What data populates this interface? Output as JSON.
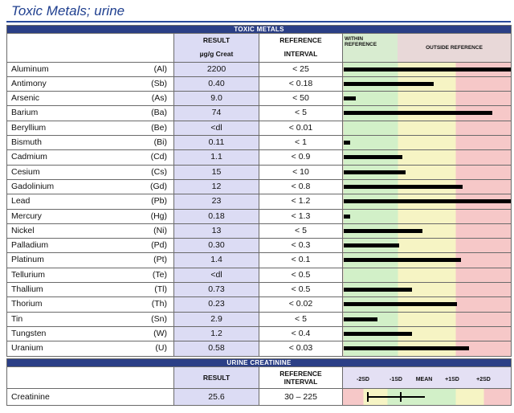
{
  "page_title": "Toxic Metals; urine",
  "toxic_metals": {
    "banner": "TOXIC METALS",
    "col_result_line1": "RESULT",
    "col_result_line2": "µg/g Creat",
    "col_ref_line1": "REFERENCE",
    "col_ref_line2": "INTERVAL",
    "within_line1": "WITHIN",
    "within_line2": "REFERENCE",
    "outside_label": "OUTSIDE REFERENCE",
    "rows": [
      {
        "name": "Aluminum",
        "symbol": "(Al)",
        "result": "2200",
        "ref": "< 25",
        "bar_fraction": 1.0
      },
      {
        "name": "Antimony",
        "symbol": "(Sb)",
        "result": "0.40",
        "ref": "< 0.18",
        "bar_fraction": 0.54
      },
      {
        "name": "Arsenic",
        "symbol": "(As)",
        "result": "9.0",
        "ref": "< 50",
        "bar_fraction": 0.07
      },
      {
        "name": "Barium",
        "symbol": "(Ba)",
        "result": "74",
        "ref": "< 5",
        "bar_fraction": 0.89
      },
      {
        "name": "Beryllium",
        "symbol": "(Be)",
        "result": "<dl",
        "ref": "< 0.01",
        "bar_fraction": 0.0
      },
      {
        "name": "Bismuth",
        "symbol": "(Bi)",
        "result": "0.11",
        "ref": "< 1",
        "bar_fraction": 0.04
      },
      {
        "name": "Cadmium",
        "symbol": "(Cd)",
        "result": "1.1",
        "ref": "< 0.9",
        "bar_fraction": 0.35
      },
      {
        "name": "Cesium",
        "symbol": "(Cs)",
        "result": "15",
        "ref": "< 10",
        "bar_fraction": 0.37
      },
      {
        "name": "Gadolinium",
        "symbol": "(Gd)",
        "result": "12",
        "ref": "< 0.8",
        "bar_fraction": 0.71
      },
      {
        "name": "Lead",
        "symbol": "(Pb)",
        "result": "23",
        "ref": "< 1.2",
        "bar_fraction": 1.0
      },
      {
        "name": "Mercury",
        "symbol": "(Hg)",
        "result": "0.18",
        "ref": "< 1.3",
        "bar_fraction": 0.04
      },
      {
        "name": "Nickel",
        "symbol": "(Ni)",
        "result": "13",
        "ref": "< 5",
        "bar_fraction": 0.47
      },
      {
        "name": "Palladium",
        "symbol": "(Pd)",
        "result": "0.30",
        "ref": "< 0.3",
        "bar_fraction": 0.33
      },
      {
        "name": "Platinum",
        "symbol": "(Pt)",
        "result": "1.4",
        "ref": "< 0.1",
        "bar_fraction": 0.7
      },
      {
        "name": "Tellurium",
        "symbol": "(Te)",
        "result": "<dl",
        "ref": "< 0.5",
        "bar_fraction": 0.0
      },
      {
        "name": "Thallium",
        "symbol": "(Tl)",
        "result": "0.73",
        "ref": "< 0.5",
        "bar_fraction": 0.41
      },
      {
        "name": "Thorium",
        "symbol": "(Th)",
        "result": "0.23",
        "ref": "< 0.02",
        "bar_fraction": 0.68
      },
      {
        "name": "Tin",
        "symbol": "(Sn)",
        "result": "2.9",
        "ref": "< 5",
        "bar_fraction": 0.2
      },
      {
        "name": "Tungsten",
        "symbol": "(W)",
        "result": "1.2",
        "ref": "< 0.4",
        "bar_fraction": 0.41
      },
      {
        "name": "Uranium",
        "symbol": "(U)",
        "result": "0.58",
        "ref": "< 0.03",
        "bar_fraction": 0.75
      }
    ]
  },
  "creatinine": {
    "banner": "URINE CREATININE",
    "col_result": "RESULT",
    "col_ref_line1": "REFERENCE",
    "col_ref_line2": "INTERVAL",
    "sd_labels": [
      "-2SD",
      "-1SD",
      "MEAN",
      "+1SD",
      "+2SD"
    ],
    "row": {
      "name": "Creatinine",
      "result": "25.6",
      "ref": "30 – 225"
    },
    "marker_fraction": 0.34
  }
}
